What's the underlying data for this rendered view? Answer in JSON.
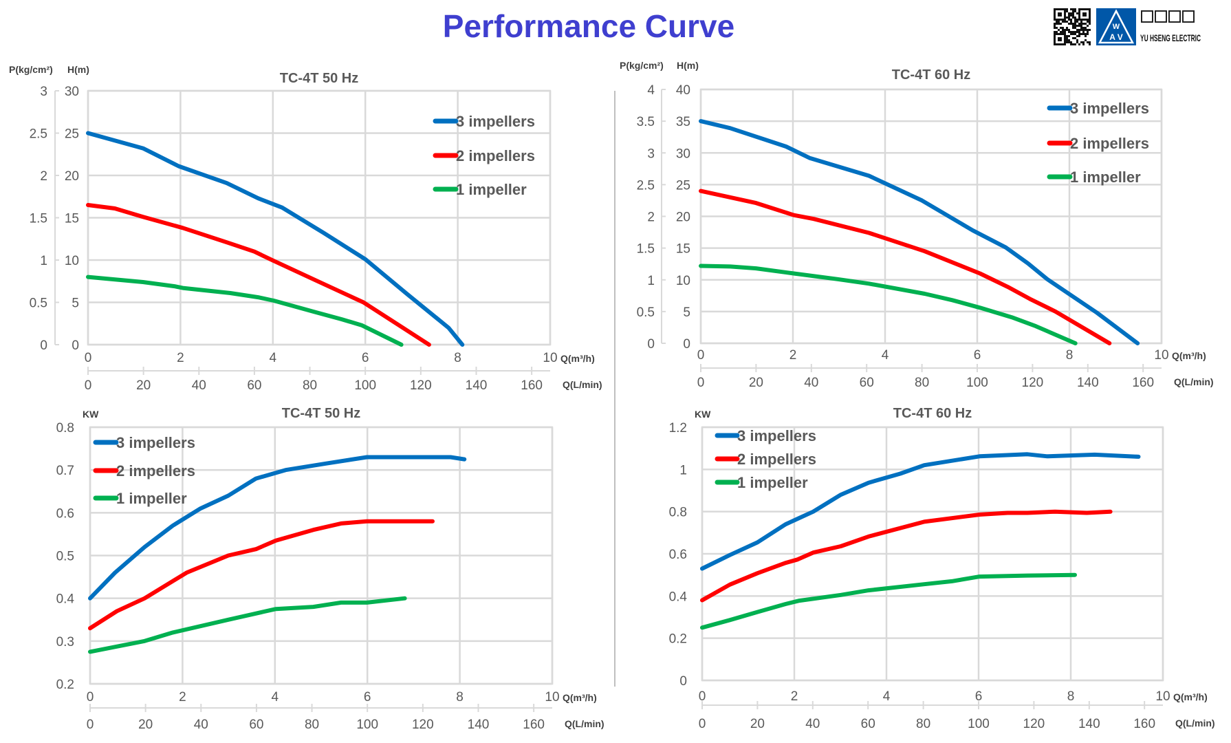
{
  "page": {
    "title": "Performance Curve",
    "title_color": "#3f3fcf",
    "logo": {
      "chinese_name": "昱盛電機",
      "english_name": "YU HSENG ELECTRIC",
      "mark_letters": "W AV",
      "brand_color": "#0057a8",
      "qr_code": "qr-code-icon"
    }
  },
  "chart_data": [
    {
      "type": "line",
      "title": "TC-4T 50 Hz",
      "xlabel": "Q(m³/h)",
      "x2label": "Q(L/min)",
      "ylabel": "H(m)",
      "y2label": "P(kg/cm²)",
      "xlim": [
        0,
        10
      ],
      "x_ticks": [
        "0",
        "2",
        "4",
        "6",
        "8",
        "10"
      ],
      "x2_ticks": [
        "0",
        "20",
        "40",
        "60",
        "80",
        "100",
        "120",
        "140",
        "160"
      ],
      "ylim": [
        0,
        30
      ],
      "y_ticks": [
        "0",
        "5",
        "10",
        "15",
        "20",
        "25",
        "30"
      ],
      "y2lim": [
        0,
        3
      ],
      "y2_ticks": [
        "0",
        "0.5",
        "1",
        "1.5",
        "2",
        "2.5",
        "3"
      ],
      "grid": true,
      "legend": "top-right",
      "series": [
        {
          "name": "3 impellers",
          "color": "#0070c0",
          "x": [
            0,
            1.19,
            1.96,
            3,
            3.68,
            4.2,
            5.1,
            6,
            6.9,
            7.8,
            8.1
          ],
          "y": [
            25,
            23.2,
            21.1,
            19.1,
            17.3,
            16.2,
            13.2,
            10.1,
            6,
            2,
            0
          ]
        },
        {
          "name": "2 impellers",
          "color": "#ff0000",
          "x": [
            0,
            0.58,
            1.19,
            2.05,
            3,
            3.6,
            4.02,
            4.97,
            5.96,
            6.7,
            7.38
          ],
          "y": [
            16.5,
            16.1,
            15.1,
            13.8,
            12.1,
            11,
            9.9,
            7.5,
            5,
            2.4,
            0
          ]
        },
        {
          "name": "1 impeller",
          "color": "#00b050",
          "x": [
            0,
            1.19,
            1.87,
            2.05,
            3.08,
            3.68,
            4.02,
            4.88,
            5.49,
            5.92,
            6.78
          ],
          "y": [
            8,
            7.4,
            6.9,
            6.7,
            6.1,
            5.6,
            5.2,
            3.9,
            3,
            2.3,
            0
          ]
        }
      ]
    },
    {
      "type": "line",
      "title": "TC-4T 60 Hz",
      "xlabel": "Q(m³/h)",
      "x2label": "Q(L/min)",
      "ylabel": "H(m)",
      "y2label": "P(kg/cm²)",
      "xlim": [
        0,
        10
      ],
      "x_ticks": [
        "0",
        "2",
        "4",
        "6",
        "8",
        "10"
      ],
      "x2_ticks": [
        "0",
        "20",
        "40",
        "60",
        "80",
        "100",
        "120",
        "140",
        "160"
      ],
      "ylim": [
        0,
        40
      ],
      "y_ticks": [
        "0",
        "5",
        "10",
        "15",
        "20",
        "25",
        "30",
        "35",
        "40"
      ],
      "y2lim": [
        0,
        4
      ],
      "y2_ticks": [
        "0",
        "0.5",
        "1",
        "1.5",
        "2",
        "2.5",
        "3",
        "3.5",
        "4"
      ],
      "grid": true,
      "legend": "top-right",
      "series": [
        {
          "name": "3 impellers",
          "color": "#0070c0",
          "x": [
            0,
            0.64,
            1.85,
            2.36,
            3.65,
            4.8,
            5.9,
            6.62,
            7.1,
            7.52,
            8.6,
            9.48
          ],
          "y": [
            35,
            33.9,
            31,
            29.2,
            26.4,
            22.5,
            17.8,
            15.1,
            12.6,
            10.1,
            4.8,
            0
          ]
        },
        {
          "name": "2 impellers",
          "color": "#ff0000",
          "x": [
            0,
            1.2,
            2.02,
            2.45,
            3.65,
            4.86,
            6.06,
            6.66,
            7.14,
            7.7,
            8.87
          ],
          "y": [
            24,
            22.1,
            20.2,
            19.6,
            17.4,
            14.5,
            11,
            8.9,
            7,
            5,
            0
          ]
        },
        {
          "name": "1 impeller",
          "color": "#00b050",
          "x": [
            0,
            0.64,
            1.2,
            2.02,
            2.97,
            3.65,
            4.86,
            5.46,
            6.06,
            6.75,
            7.27,
            8.13
          ],
          "y": [
            12.2,
            12.1,
            11.8,
            11,
            10.1,
            9.4,
            7.8,
            6.8,
            5.6,
            4.1,
            2.7,
            0
          ]
        }
      ]
    },
    {
      "type": "line",
      "title": "TC-4T 50 Hz",
      "xlabel": "Q(m³/h)",
      "x2label": "Q(L/min)",
      "ylabel": "KW",
      "xlim": [
        0,
        10
      ],
      "x_ticks": [
        "0",
        "2",
        "4",
        "6",
        "8",
        "10"
      ],
      "x2_ticks": [
        "0",
        "20",
        "40",
        "60",
        "80",
        "100",
        "120",
        "140",
        "160"
      ],
      "ylim": [
        0.2,
        0.8
      ],
      "y_ticks": [
        "0.2",
        "0.3",
        "0.4",
        "0.5",
        "0.6",
        "0.7",
        "0.8"
      ],
      "grid": true,
      "legend": "top-left",
      "series": [
        {
          "name": "3 impellers",
          "color": "#0070c0",
          "x": [
            0,
            0.54,
            1.18,
            1.79,
            2.39,
            2.99,
            3.59,
            4.23,
            5.1,
            5.99,
            7.8,
            8.1
          ],
          "y": [
            0.4,
            0.46,
            0.52,
            0.57,
            0.61,
            0.64,
            0.68,
            0.7,
            0.715,
            0.73,
            0.73,
            0.725
          ]
        },
        {
          "name": "2 impellers",
          "color": "#ff0000",
          "x": [
            0,
            0.58,
            1.18,
            2.09,
            2.99,
            3.59,
            4.02,
            4.83,
            5.43,
            5.99,
            7.41
          ],
          "y": [
            0.33,
            0.37,
            0.4,
            0.46,
            0.5,
            0.515,
            0.535,
            0.56,
            0.575,
            0.58,
            0.58
          ]
        },
        {
          "name": "1 impeller",
          "color": "#00b050",
          "x": [
            0,
            1.18,
            1.79,
            2.99,
            4.02,
            4.83,
            5.43,
            5.99,
            6.81
          ],
          "y": [
            0.275,
            0.3,
            0.32,
            0.35,
            0.375,
            0.38,
            0.39,
            0.39,
            0.4
          ]
        }
      ]
    },
    {
      "type": "line",
      "title": "TC-4T 60 Hz",
      "xlabel": "Q(m³/h)",
      "x2label": "Q(L/min)",
      "ylabel": "KW",
      "xlim": [
        0,
        10
      ],
      "x_ticks": [
        "0",
        "2",
        "4",
        "6",
        "8",
        "10"
      ],
      "x2_ticks": [
        "0",
        "20",
        "40",
        "60",
        "80",
        "100",
        "120",
        "140",
        "160"
      ],
      "ylim": [
        0,
        1.2
      ],
      "y_ticks": [
        "0",
        "0.2",
        "0.4",
        "0.6",
        "0.8",
        "1",
        "1.2"
      ],
      "grid": true,
      "legend": "top-left",
      "series": [
        {
          "name": "3 impellers",
          "color": "#0070c0",
          "x": [
            0,
            0.6,
            1.2,
            1.81,
            2.11,
            2.41,
            3.01,
            3.61,
            4.3,
            4.82,
            6.02,
            7.06,
            7.49,
            8.52,
            9.47
          ],
          "y": [
            0.53,
            0.594,
            0.654,
            0.74,
            0.77,
            0.8,
            0.88,
            0.937,
            0.98,
            1.02,
            1.062,
            1.072,
            1.062,
            1.07,
            1.06
          ]
        },
        {
          "name": "2 impellers",
          "color": "#ff0000",
          "x": [
            0,
            0.6,
            1.2,
            1.81,
            2.07,
            2.41,
            3.01,
            3.61,
            4.82,
            6.02,
            6.63,
            7.06,
            7.66,
            8.35,
            8.86
          ],
          "y": [
            0.38,
            0.454,
            0.508,
            0.557,
            0.573,
            0.606,
            0.636,
            0.682,
            0.752,
            0.786,
            0.794,
            0.794,
            0.8,
            0.794,
            0.8
          ]
        },
        {
          "name": "1 impeller",
          "color": "#00b050",
          "x": [
            0,
            0.6,
            1.2,
            1.81,
            2.11,
            3.01,
            3.61,
            4.82,
            5.42,
            6.02,
            7.06,
            8.09
          ],
          "y": [
            0.25,
            0.286,
            0.324,
            0.362,
            0.378,
            0.405,
            0.427,
            0.456,
            0.47,
            0.492,
            0.497,
            0.5
          ]
        }
      ]
    }
  ]
}
